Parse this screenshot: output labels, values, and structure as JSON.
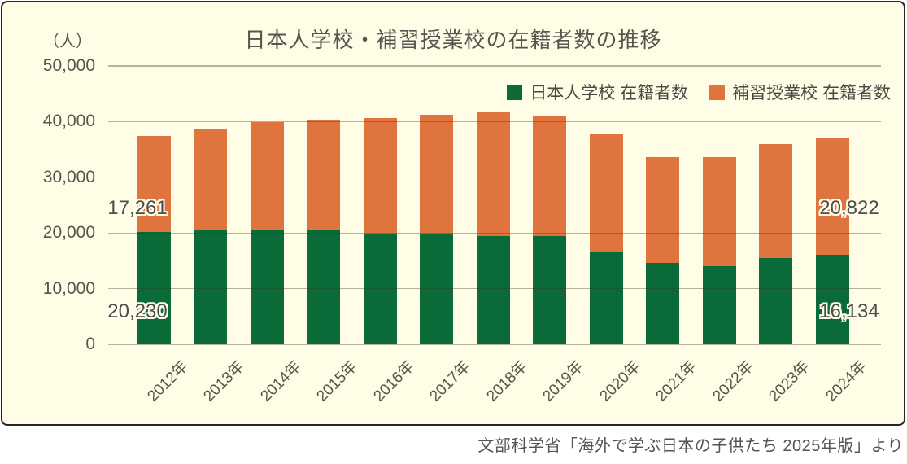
{
  "chart_data": {
    "type": "bar",
    "stacked": true,
    "title": "日本人学校・補習授業校の在籍者数の推移",
    "y_axis_unit": "（人）",
    "ylim": [
      0,
      50000
    ],
    "grid": true,
    "legend_position": "top-right-inside",
    "y_ticks": [
      {
        "value": 50000,
        "label": "50,000"
      },
      {
        "value": 40000,
        "label": "40,000"
      },
      {
        "value": 30000,
        "label": "30,000"
      },
      {
        "value": 20000,
        "label": "20,000"
      },
      {
        "value": 10000,
        "label": "10,000"
      },
      {
        "value": 0,
        "label": "0"
      }
    ],
    "categories": [
      "2012年",
      "2013年",
      "2014年",
      "2015年",
      "2016年",
      "2017年",
      "2018年",
      "2019年",
      "2020年",
      "2021年",
      "2022年",
      "2023年",
      "2024年"
    ],
    "series": [
      {
        "name": "日本人学校 在籍者数",
        "color": "#0A6B39",
        "values": [
          20230,
          20500,
          20500,
          20400,
          19700,
          19700,
          19500,
          19400,
          16500,
          14600,
          14100,
          15500,
          16134
        ]
      },
      {
        "name": "補習授業校 在籍者数",
        "color": "#E0743E",
        "values": [
          17261,
          18200,
          19400,
          19800,
          20900,
          21500,
          22100,
          21700,
          21200,
          19100,
          19500,
          20400,
          20822
        ]
      }
    ],
    "data_labels": [
      {
        "text": "17,261",
        "bar_index": 0,
        "series_index": 1
      },
      {
        "text": "20,230",
        "bar_index": 0,
        "series_index": 0
      },
      {
        "text": "20,822",
        "bar_index": 12,
        "series_index": 1
      },
      {
        "text": "16,134",
        "bar_index": 12,
        "series_index": 0
      }
    ]
  },
  "source_note": "文部科学省「海外で学ぶ日本の子供たち 2025年版」より",
  "colors": {
    "panel_background": "#FFFDE6",
    "panel_border": "#262626",
    "grid_line": "rgba(60,55,40,0.38)",
    "text": "#56564E",
    "label_outline": "#FFFDEB"
  }
}
